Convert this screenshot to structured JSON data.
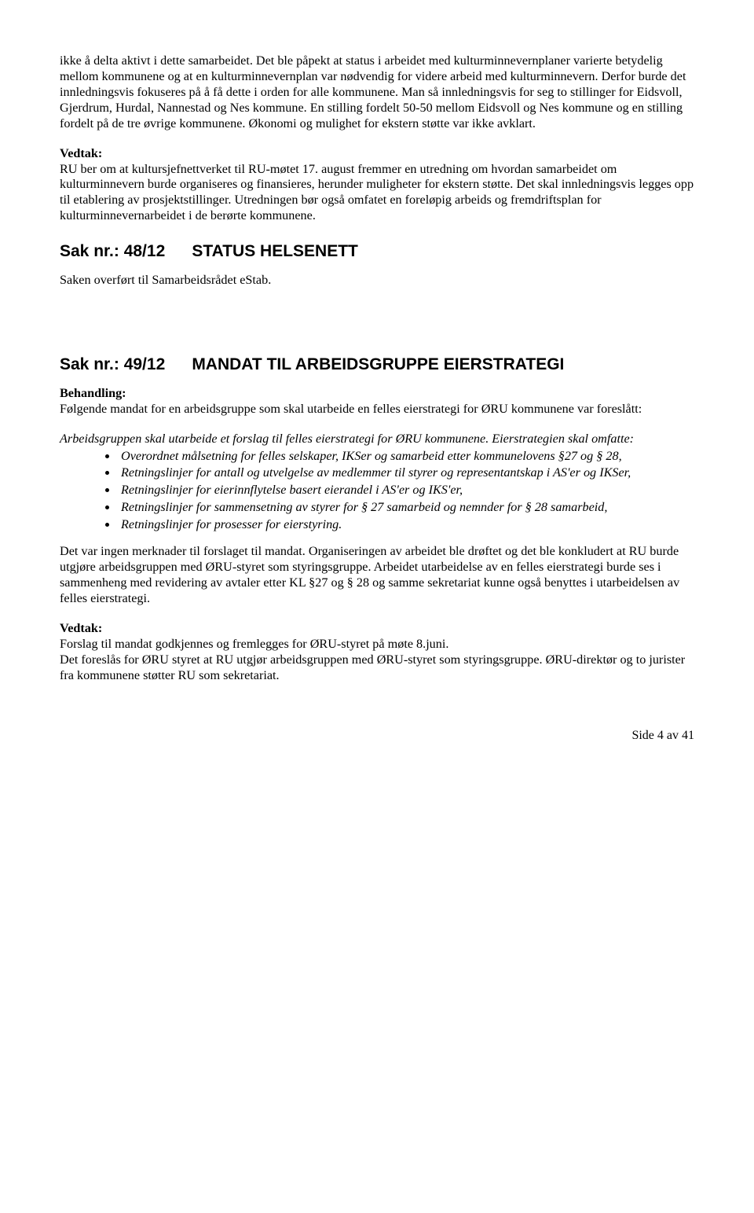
{
  "para1": "ikke å delta aktivt i dette samarbeidet.",
  "para2": "Det ble påpekt at status i arbeidet med",
  "para3": "kulturminnevernplaner varierte betydelig mellom kommunene og at en kulturminnevernplan var nødvendig for videre arbeid med kulturminnevern. Derfor burde det innledningsvis fokuseres på å få dette i orden for alle kommunene. Man så innledningsvis for seg to stillinger for Eidsvoll, Gjerdrum, Hurdal, Nannestad og Nes kommune. En stilling fordelt 50-50 mellom Eidsvoll og Nes kommune og en stilling fordelt på de tre øvrige kommunene. Økonomi og mulighet for ekstern støtte var ikke avklart.",
  "vedtak_label": "Vedtak:",
  "vedtak1": "RU ber om at kultursjefnettverket til RU-møtet 17. august fremmer en utredning om hvordan samarbeidet om kulturminnevern burde organiseres og finansieres, herunder muligheter for ekstern støtte. Det skal innledningsvis legges opp til etablering av prosjektstillinger. Utredningen bør også omfatet en foreløpig arbeids og fremdriftsplan for kulturminnevernarbeidet i de berørte kommunene.",
  "sak48_prefix": "Sak nr.: 48/12",
  "sak48_title": "STATUS HELSENETT",
  "sak48_text": "Saken overført til Samarbeidsrådet eStab.",
  "sak49_prefix": "Sak nr.: 49/12",
  "sak49_title": "MANDAT TIL ARBEIDSGRUPPE EIERSTRATEGI",
  "behandling_label": "Behandling:",
  "behandling_text": "Følgende mandat for en arbeidsgruppe som skal utarbeide en felles eierstrategi for ØRU kommunene var foreslått:",
  "italic_intro": "Arbeidsgruppen skal utarbeide et forslag til felles eierstrategi for ØRU kommunene. Eierstrategien skal omfatte:",
  "bullets": [
    "Overordnet målsetning for felles selskaper, IKSer og samarbeid etter kommunelovens §27 og § 28,",
    "Retningslinjer for antall og utvelgelse av medlemmer til styrer og representantskap i AS'er og IKSer,",
    "Retningslinjer for eierinnflytelse basert eierandel i AS'er og IKS'er,",
    "Retningslinjer for sammensetning av styrer for § 27 samarbeid og nemnder for § 28 samarbeid,",
    "Retningslinjer for prosesser for eierstyring."
  ],
  "para_after_bullets": "Det var ingen merknader til forslaget til mandat. Organiseringen av arbeidet ble drøftet og det ble konkludert at RU burde utgjøre arbeidsgruppen med ØRU-styret som styringsgruppe. Arbeidet utarbeidelse av en felles eierstrategi burde ses i sammenheng med revidering av avtaler etter KL §27 og § 28 og samme sekretariat kunne også benyttes i utarbeidelsen av felles eierstrategi.",
  "vedtak2_line1": "Forslag til mandat godkjennes og fremlegges for ØRU-styret på møte 8.juni.",
  "vedtak2_line2": "Det foreslås for ØRU styret at RU utgjør arbeidsgruppen med ØRU-styret som styringsgruppe. ØRU-direktør og to jurister fra kommunene støtter RU som sekretariat.",
  "footer": "Side 4 av 41"
}
